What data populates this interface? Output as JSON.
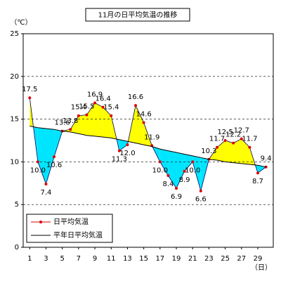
{
  "chart_data": {
    "type": "line",
    "title": "11月の日平均気温の推移",
    "y_unit": "（℃）",
    "x_unit": "（日）",
    "x": [
      1,
      2,
      3,
      4,
      5,
      6,
      7,
      8,
      9,
      10,
      11,
      12,
      13,
      14,
      15,
      16,
      17,
      18,
      19,
      20,
      21,
      22,
      23,
      24,
      25,
      26,
      27,
      28,
      29,
      30
    ],
    "xlim": [
      0.2,
      30.9
    ],
    "xticks": [
      1,
      3,
      5,
      7,
      9,
      11,
      13,
      15,
      17,
      19,
      21,
      23,
      25,
      27,
      29
    ],
    "ylim": [
      0,
      25
    ],
    "yticks": [
      0,
      5,
      10,
      15,
      20,
      25
    ],
    "grid": true,
    "legend": "bottom-left",
    "above_color": "#ffff00",
    "below_color": "#00e5ff",
    "series": [
      {
        "name": "日平均気温",
        "color": "#dd0000",
        "values": [
          17.5,
          10.0,
          7.4,
          10.6,
          13.6,
          13.8,
          15.4,
          15.5,
          16.9,
          16.4,
          15.4,
          11.3,
          12.0,
          16.6,
          14.6,
          11.9,
          10.0,
          8.4,
          6.9,
          8.9,
          10.0,
          6.6,
          10.3,
          11.7,
          12.5,
          12.2,
          12.7,
          11.7,
          8.7,
          9.4
        ],
        "value_labels": [
          "17.5",
          "10.0",
          "7.4",
          "10.6",
          "13.6",
          "13.8",
          "15.4",
          "15.5",
          "16.9",
          "16.4",
          "15.4",
          "11.3",
          "12.0",
          "16.6",
          "14.6",
          "11.9",
          "10.0",
          "8.4",
          "6.9",
          "8.9",
          "10.0",
          "6.6",
          "10.3",
          "11.7",
          "12.5",
          "12.2",
          "12.7",
          "11.7",
          "8.7",
          "9.4"
        ]
      },
      {
        "name": "平年日平均気温",
        "color": "#000000",
        "values": [
          14.2,
          14.0,
          13.9,
          13.8,
          13.6,
          13.5,
          13.3,
          13.1,
          13.0,
          12.9,
          12.8,
          12.6,
          12.4,
          12.2,
          12.0,
          11.8,
          11.5,
          11.3,
          11.1,
          10.9,
          10.7,
          10.5,
          10.3,
          10.2,
          10.0,
          9.9,
          9.8,
          9.7,
          9.6,
          9.4
        ]
      }
    ]
  }
}
